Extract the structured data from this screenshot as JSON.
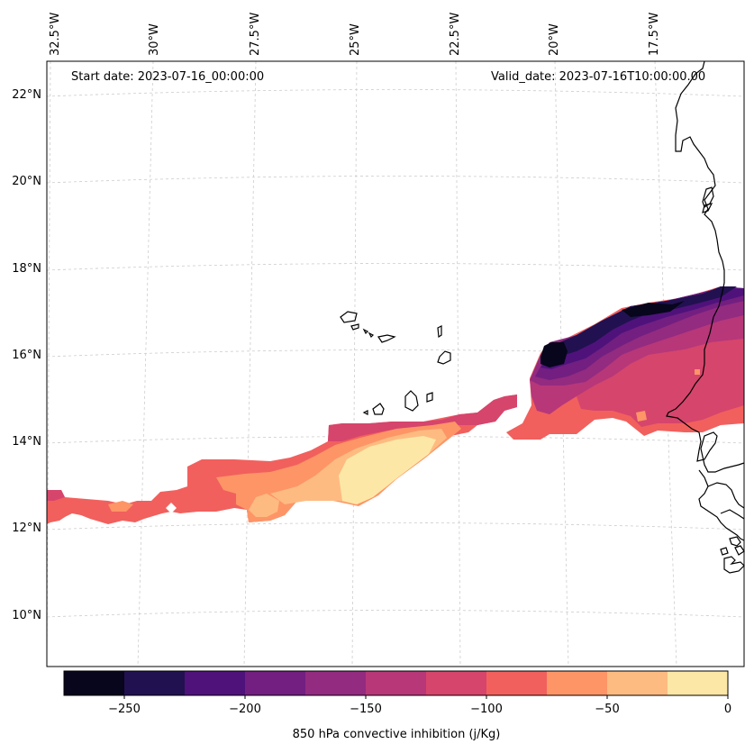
{
  "lon_labels": [
    "32.5°W",
    "30°W",
    "27.5°W",
    "25°W",
    "22.5°W",
    "20°W",
    "17.5°W"
  ],
  "lat_labels": [
    "22°N",
    "20°N",
    "18°N",
    "16°N",
    "14°N",
    "12°N",
    "10°N"
  ],
  "start_date": "Start date: 2023-07-16_00:00:00",
  "valid_date": "Valid_date: 2023-07-16T10:00:00.00",
  "colorbar": {
    "title": "850 hPa convective inhibition (j/Kg)",
    "ticks": [
      "−250",
      "−200",
      "−150",
      "−100",
      "−50",
      "0"
    ],
    "levels": [
      -275,
      -250,
      -225,
      -200,
      -175,
      -150,
      -125,
      -100,
      -75,
      -50,
      -25,
      0
    ],
    "colors": [
      "#07061c",
      "#221150",
      "#4f127b",
      "#721f81",
      "#932b80",
      "#b73779",
      "#d6456c",
      "#f1605d",
      "#fd9567",
      "#febb81",
      "#fde7a6"
    ]
  },
  "field_colors": {
    "l1": "#07061c",
    "l2": "#221150",
    "l3": "#4f127b",
    "l4": "#721f81",
    "l5": "#932b80",
    "l6": "#b73779",
    "l7": "#d6456c",
    "l8": "#f1605d",
    "l9": "#fd9567",
    "l10": "#febb81",
    "l11": "#fde7a6"
  },
  "coastline_color": "#000000",
  "grid_color": "#cccccc"
}
